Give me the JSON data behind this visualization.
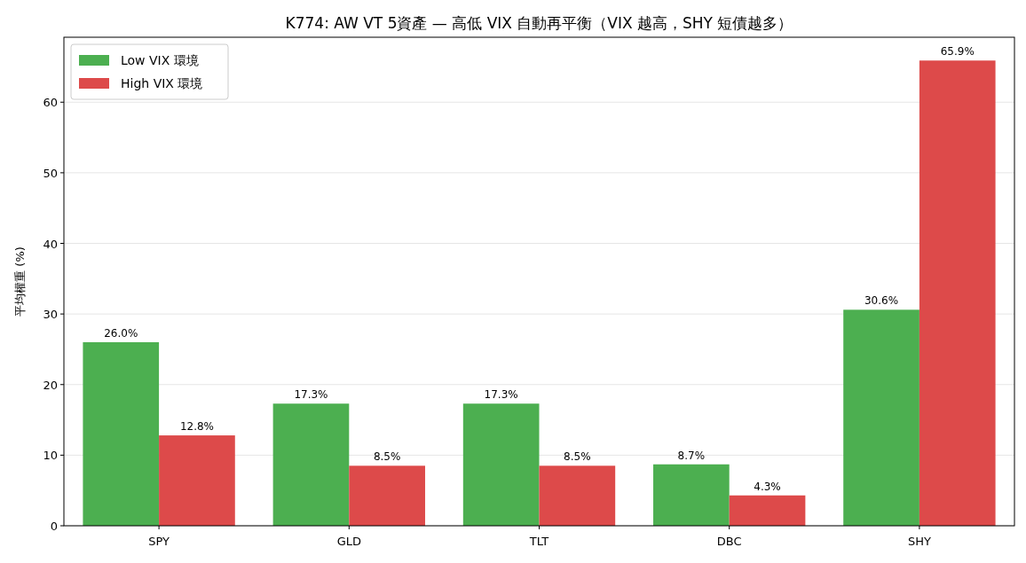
{
  "chart_data": {
    "type": "bar",
    "title": "K774: AW VT 5資產 — 高低 VIX 自動再平衡（VIX 越高，SHY 短債越多）",
    "ylabel": "平均權重 (%)",
    "categories": [
      "SPY",
      "GLD",
      "TLT",
      "DBC",
      "SHY"
    ],
    "series": [
      {
        "name": "Low VIX 環境",
        "color": "#4caf50",
        "values": [
          26.0,
          17.3,
          17.3,
          8.7,
          30.6
        ],
        "value_labels": [
          "26.0%",
          "17.3%",
          "17.3%",
          "8.7%",
          "30.6%"
        ]
      },
      {
        "name": "High VIX 環境",
        "color": "#dd4a4a",
        "values": [
          12.8,
          8.5,
          8.5,
          4.3,
          65.9
        ],
        "value_labels": [
          "12.8%",
          "8.5%",
          "8.5%",
          "4.3%",
          "65.9%"
        ]
      }
    ],
    "ylim": [
      0,
      69.2
    ],
    "yticks": [
      0,
      10,
      20,
      30,
      40,
      50,
      60
    ],
    "grid": "y",
    "legend": "top left"
  }
}
